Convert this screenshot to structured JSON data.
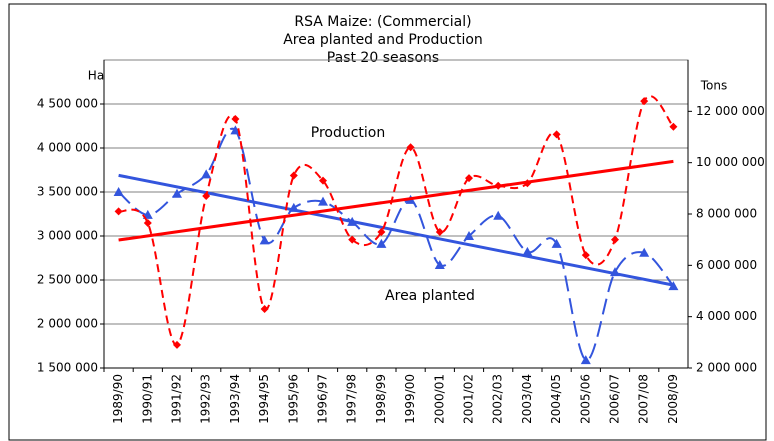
{
  "chart_data": {
    "type": "line",
    "title": [
      "RSA Maize: (Commercial)",
      "Area planted and Production",
      "Past 20 seasons"
    ],
    "y_label": "Ha",
    "y2_label": "Tons",
    "annotations": [
      {
        "text": "Production",
        "color": "#ff0000"
      },
      {
        "text": "Area planted",
        "color": "#3355dd"
      }
    ],
    "categories": [
      "1989/90",
      "1990/91",
      "1991/92",
      "1992/93",
      "1993/94",
      "1994/95",
      "1995/96",
      "1996/97",
      "1997/98",
      "1998/99",
      "1999/00",
      "2000/01",
      "2001/02",
      "2002/03",
      "2003/04",
      "2004/05",
      "2005/06",
      "2006/07",
      "2007/08",
      "2008/09"
    ],
    "series": [
      {
        "name": "Area planted",
        "color": "#3355dd",
        "marker": "triangle",
        "axis": "y",
        "trendline": true,
        "values": [
          3500000,
          3240000,
          3480000,
          3700000,
          4200000,
          2950000,
          3320000,
          3390000,
          3160000,
          2910000,
          3410000,
          2670000,
          3000000,
          3230000,
          2820000,
          2910000,
          1590000,
          2590000,
          2810000,
          2430000
        ]
      },
      {
        "name": "Production",
        "color": "#ff0000",
        "marker": "diamond",
        "axis": "y2",
        "trendline": true,
        "values": [
          8100000,
          7650000,
          2900000,
          8700000,
          11700000,
          4300000,
          9500000,
          9300000,
          7000000,
          7300000,
          10600000,
          7300000,
          9400000,
          9100000,
          9200000,
          11100000,
          6400000,
          7000000,
          12400000,
          11400000
        ]
      }
    ],
    "ylim": [
      1500000,
      5000000
    ],
    "yticks": [
      {
        "value": 1500000,
        "label": "1 500 000"
      },
      {
        "value": 2000000,
        "label": "2 000 000"
      },
      {
        "value": 2500000,
        "label": "2 500 000"
      },
      {
        "value": 3000000,
        "label": "3 000 000"
      },
      {
        "value": 3500000,
        "label": "3 500 000"
      },
      {
        "value": 4000000,
        "label": "4 000 000"
      },
      {
        "value": 4500000,
        "label": "4 500 000"
      }
    ],
    "y2lim": [
      2000000,
      14000000
    ],
    "y2ticks": [
      {
        "value": 2000000,
        "label": "2 000 000"
      },
      {
        "value": 4000000,
        "label": "4 000 000"
      },
      {
        "value": 6000000,
        "label": "6 000 000"
      },
      {
        "value": 8000000,
        "label": "8 000 000"
      },
      {
        "value": 10000000,
        "label": "10 000 000"
      },
      {
        "value": 12000000,
        "label": "12 000 000"
      }
    ],
    "grid": true
  }
}
